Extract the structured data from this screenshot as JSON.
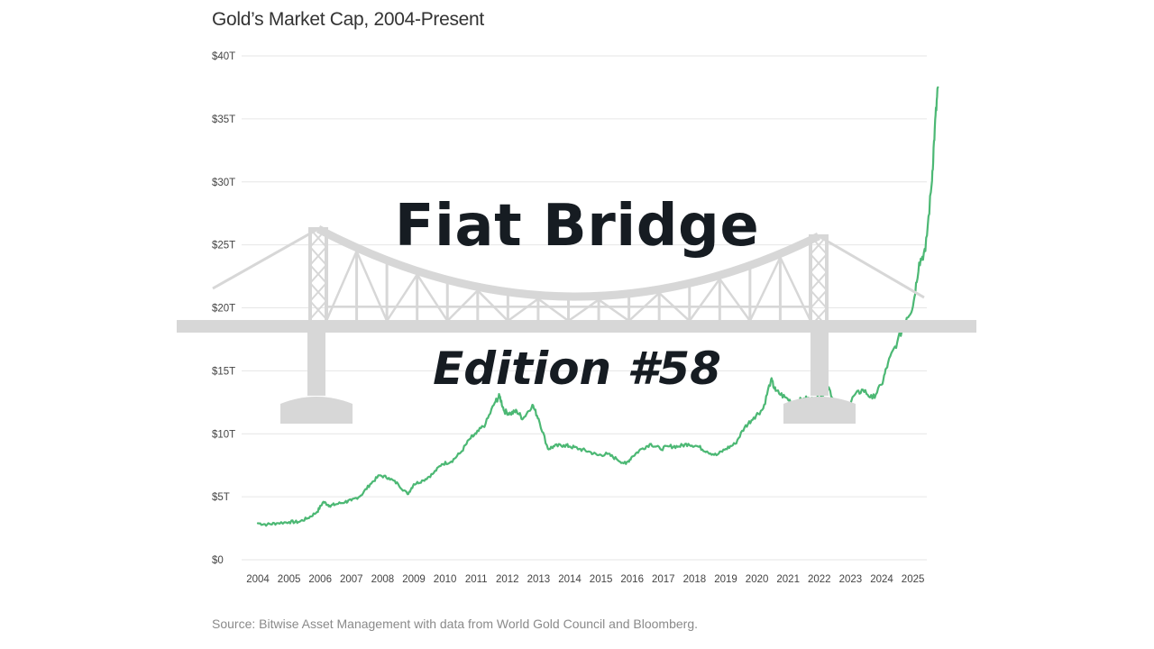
{
  "title": "Gold’s Market Cap, 2004-Present",
  "source": "Source: Bitwise Asset Management with data from World Gold Council and Bloomberg.",
  "overlay": {
    "title": "Fiat Bridge",
    "edition": "Edition #58"
  },
  "colors": {
    "line": "#4cb874",
    "grid": "#e6e6e6",
    "bridge": "#d7d7d7",
    "text": "#161c22"
  },
  "chart_data": {
    "type": "line",
    "title": "Gold’s Market Cap, 2004-Present",
    "x_tick_labels": [
      "2004",
      "2005",
      "2006",
      "2007",
      "2008",
      "2009",
      "2010",
      "2011",
      "2012",
      "2013",
      "2014",
      "2015",
      "2016",
      "2017",
      "2018",
      "2019",
      "2020",
      "2021",
      "2022",
      "2023",
      "2024",
      "2025"
    ],
    "y_tick_labels": [
      "$0",
      "$5T",
      "$10T",
      "$15T",
      "$20T",
      "$25T",
      "$30T",
      "$35T",
      "$40T"
    ],
    "ylim": [
      0,
      40
    ],
    "xlim": [
      2004.0,
      2025.85
    ],
    "grid": true,
    "series": [
      {
        "x": [
          2004.0,
          2004.3,
          2004.6,
          2005.0,
          2005.3,
          2005.6,
          2005.9,
          2006.1,
          2006.3,
          2006.5,
          2006.8,
          2007.0,
          2007.3,
          2007.6,
          2007.9,
          2008.2,
          2008.5,
          2008.8,
          2009.0,
          2009.3,
          2009.6,
          2009.9,
          2010.2,
          2010.5,
          2010.8,
          2011.0,
          2011.3,
          2011.6,
          2011.75,
          2011.9,
          2012.1,
          2012.3,
          2012.5,
          2012.8,
          2013.0,
          2013.3,
          2013.5,
          2013.8,
          2014.0,
          2014.3,
          2014.6,
          2014.9,
          2015.2,
          2015.5,
          2015.8,
          2016.0,
          2016.3,
          2016.6,
          2016.9,
          2017.2,
          2017.5,
          2017.8,
          2018.1,
          2018.4,
          2018.7,
          2019.0,
          2019.3,
          2019.6,
          2019.9,
          2020.2,
          2020.45,
          2020.6,
          2020.9,
          2021.2,
          2021.5,
          2021.8,
          2022.1,
          2022.3,
          2022.5,
          2022.8,
          2023.1,
          2023.4,
          2023.7,
          2024.0,
          2024.2,
          2024.5,
          2024.8,
          2025.0,
          2025.2,
          2025.4,
          2025.6,
          2025.7,
          2025.8
        ],
        "values": [
          2.9,
          2.8,
          2.9,
          3.0,
          3.0,
          3.3,
          3.8,
          4.6,
          4.3,
          4.4,
          4.6,
          4.7,
          5.1,
          6.0,
          6.7,
          6.5,
          6.0,
          5.2,
          6.0,
          6.3,
          6.8,
          7.6,
          7.8,
          8.5,
          9.6,
          10.0,
          10.8,
          12.5,
          13.0,
          11.8,
          11.6,
          11.8,
          11.2,
          12.3,
          11.2,
          8.8,
          9.0,
          9.1,
          9.0,
          8.8,
          8.6,
          8.3,
          8.4,
          8.0,
          7.6,
          8.2,
          8.8,
          9.2,
          8.8,
          9.0,
          9.0,
          9.2,
          9.0,
          8.6,
          8.3,
          8.8,
          9.2,
          10.5,
          11.3,
          12.0,
          14.3,
          13.4,
          12.9,
          12.4,
          12.8,
          12.7,
          13.2,
          13.7,
          12.3,
          11.4,
          13.0,
          13.5,
          12.8,
          13.9,
          15.6,
          17.3,
          19.2,
          20.1,
          23.6,
          24.5,
          29.8,
          34.2,
          37.5
        ]
      }
    ]
  }
}
